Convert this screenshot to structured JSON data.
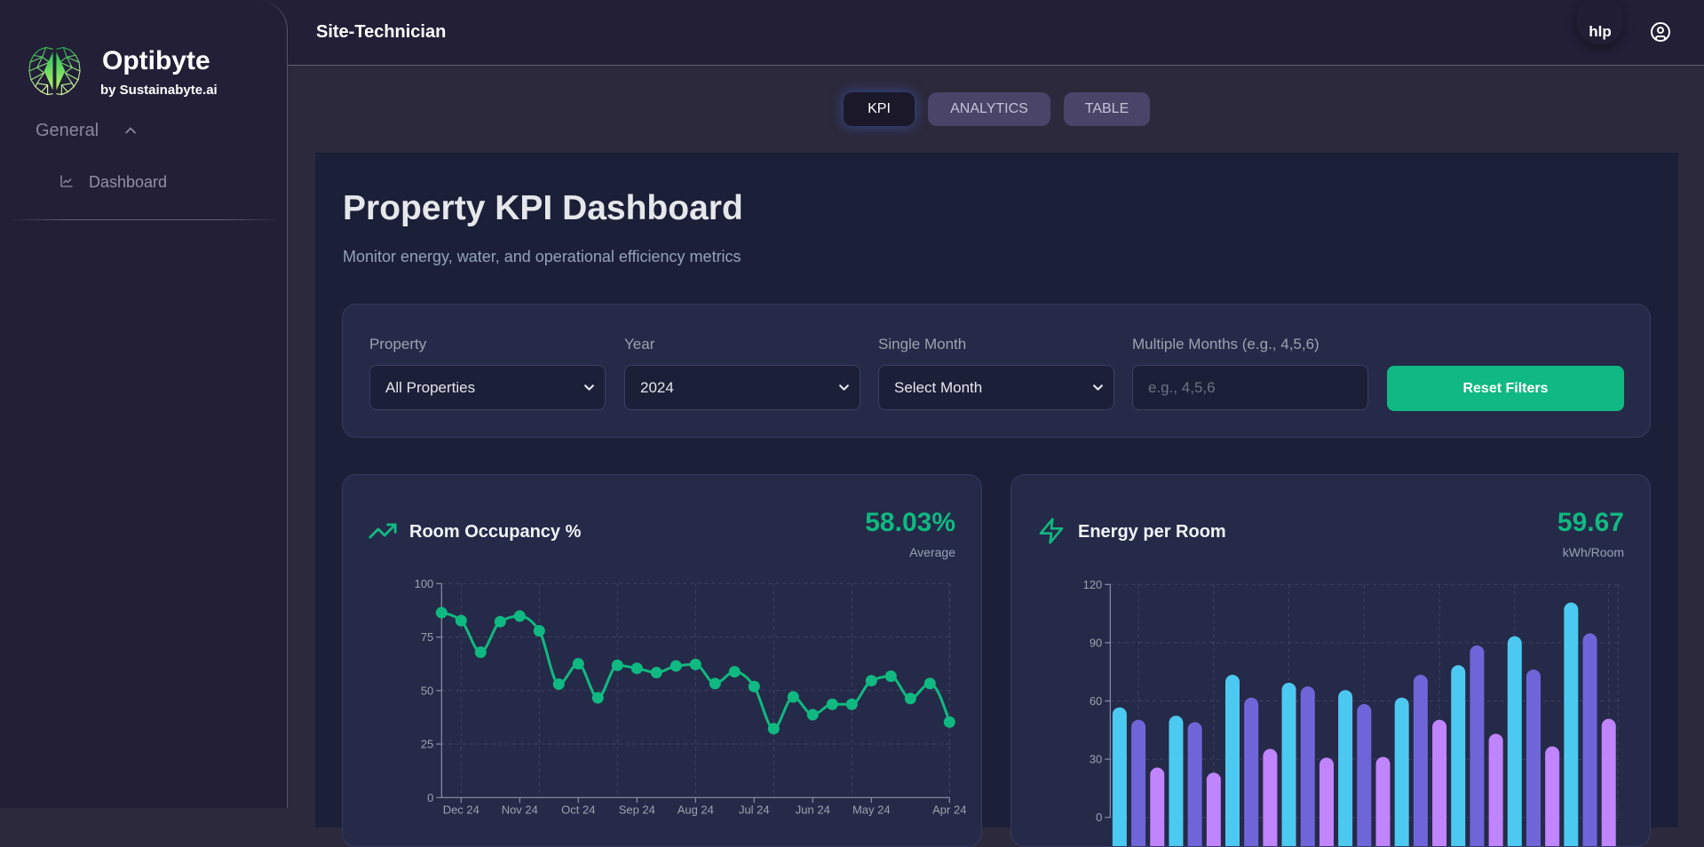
{
  "brand": {
    "name": "Optibyte",
    "tagline": "by Sustainabyte.ai",
    "logo_icon": "brain-logo-icon"
  },
  "sidebar": {
    "section_label": "General",
    "section_expanded": true,
    "items": [
      {
        "label": "Dashboard",
        "icon": "line-chart-icon"
      }
    ]
  },
  "header": {
    "title": "Site-Technician",
    "help_label": "hlp",
    "profile_icon": "user-circle-icon"
  },
  "tabs": [
    {
      "label": "KPI",
      "active": true
    },
    {
      "label": "ANALYTICS",
      "active": false
    },
    {
      "label": "TABLE",
      "active": false
    }
  ],
  "page": {
    "title": "Property KPI Dashboard",
    "subtitle": "Monitor energy, water, and operational efficiency metrics"
  },
  "filters": {
    "property": {
      "label": "Property",
      "value": "All Properties"
    },
    "year": {
      "label": "Year",
      "value": "2024"
    },
    "single_month": {
      "label": "Single Month",
      "value": "Select Month"
    },
    "multiple_months": {
      "label": "Multiple Months (e.g., 4,5,6)",
      "value": "",
      "placeholder": "e.g., 4,5,6"
    },
    "reset_label": "Reset Filters"
  },
  "kpi_cards": [
    {
      "title": "Room Occupancy %",
      "icon": "trending-up-icon",
      "value": "58.03%",
      "caption": "Average"
    },
    {
      "title": "Energy per Room",
      "icon": "zap-icon",
      "value": "59.67",
      "caption": "kWh/Room"
    }
  ],
  "colors": {
    "accent": "#10b981",
    "panel_bg": "#1c1f38",
    "card_bg": "#252a48",
    "tab_inactive_bg": "#4a4468",
    "active_tab_glow": "#4a6fd6"
  },
  "chart_data": [
    {
      "type": "line",
      "title": "Room Occupancy %",
      "ylim": [
        0,
        100
      ],
      "y_ticks": [
        0,
        25,
        50,
        75,
        100
      ],
      "x_ticks": [
        {
          "index": 1,
          "label": "Dec 24"
        },
        {
          "index": 4,
          "label": "Nov 24"
        },
        {
          "index": 7,
          "label": "Oct 24"
        },
        {
          "index": 10,
          "label": "Sep 24"
        },
        {
          "index": 13,
          "label": "Aug 24"
        },
        {
          "index": 16,
          "label": "Jul 24"
        },
        {
          "index": 19,
          "label": "Jun 24"
        },
        {
          "index": 22,
          "label": "May 24"
        },
        {
          "index": 26,
          "label": "Apr 24"
        }
      ],
      "grid": true,
      "series": [
        {
          "name": "Room Occupancy %",
          "color": "#10b981",
          "values": [
            86.4,
            82.7,
            67.9,
            82.2,
            84.8,
            77.9,
            53.0,
            62.5,
            46.6,
            61.8,
            60.4,
            58.4,
            61.5,
            62.2,
            53.3,
            58.8,
            51.9,
            32.2,
            47.0,
            38.7,
            43.6,
            43.6,
            54.6,
            56.7,
            46.3,
            53.3,
            35.3
          ]
        }
      ]
    },
    {
      "type": "bar",
      "title": "Energy per Room",
      "ylim": [
        0,
        120
      ],
      "y_ticks": [
        0,
        30,
        60,
        90,
        120
      ],
      "grid": true,
      "series": [
        {
          "name": "series-1",
          "color": "#4cc9f0",
          "values": [
            56.7,
            52.4,
            73.5,
            69.4,
            65.6,
            61.7,
            78.4,
            93.3,
            110.7
          ]
        },
        {
          "name": "series-2",
          "color": "#6e66d8",
          "values": [
            50.3,
            49.1,
            61.7,
            67.5,
            58.4,
            73.5,
            88.6,
            76.2,
            94.8
          ]
        },
        {
          "name": "series-3",
          "color": "#c084fc",
          "values": [
            25.7,
            23.1,
            35.3,
            30.8,
            31.2,
            50.3,
            43.1,
            36.6,
            50.8
          ]
        }
      ]
    }
  ]
}
